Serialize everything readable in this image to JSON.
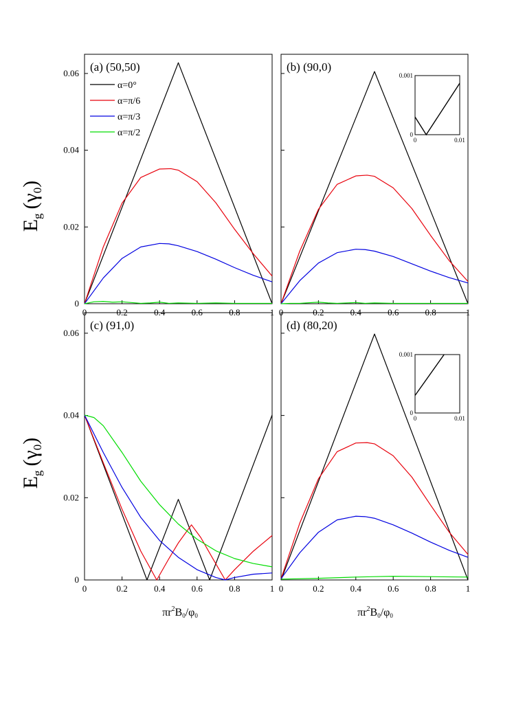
{
  "figure": {
    "ylabel": {
      "main": "E",
      "sub_g": "g",
      "paren": "(γ",
      "sub_0": "0",
      "close": ")"
    },
    "xlabel": {
      "p1": "πr",
      "sup": "2",
      "p2": "B",
      "sub1": "0",
      "p3": "/φ",
      "sub2": "0"
    }
  },
  "legend": {
    "entries": [
      {
        "label": "α=0°",
        "color": "#000000"
      },
      {
        "label": "α=π/6",
        "color": "#e8000b"
      },
      {
        "label": "α=π/3",
        "color": "#0000e0"
      },
      {
        "label": "α=π/2",
        "color": "#00dd00"
      }
    ],
    "placement": "top-left of panel (a)"
  },
  "chart_data": [
    {
      "type": "line",
      "label": "(a) (50,50)",
      "xlim": [
        0,
        1
      ],
      "ylim": [
        0,
        0.065
      ],
      "xticks": [
        "0",
        "0.2",
        "0.4",
        "0.6",
        "0.8",
        "1"
      ],
      "yticks": [
        "0",
        "0.02",
        "0.04",
        "0.06"
      ],
      "series": [
        {
          "name": "α=0°",
          "color": "#000000",
          "points": [
            [
              0,
              0
            ],
            [
              0.5,
              0.0628
            ],
            [
              1,
              0
            ]
          ]
        },
        {
          "name": "α=π/6",
          "color": "#e8000b",
          "points": [
            [
              0,
              0
            ],
            [
              0.1,
              0.0148
            ],
            [
              0.2,
              0.0262
            ],
            [
              0.3,
              0.0329
            ],
            [
              0.4,
              0.0351
            ],
            [
              0.46,
              0.0352
            ],
            [
              0.5,
              0.0348
            ],
            [
              0.6,
              0.0318
            ],
            [
              0.7,
              0.0263
            ],
            [
              0.8,
              0.0194
            ],
            [
              0.9,
              0.013
            ],
            [
              1,
              0.0072
            ]
          ]
        },
        {
          "name": "α=π/3",
          "color": "#0000e0",
          "points": [
            [
              0,
              0
            ],
            [
              0.1,
              0.0067
            ],
            [
              0.2,
              0.0118
            ],
            [
              0.3,
              0.0148
            ],
            [
              0.4,
              0.0157
            ],
            [
              0.45,
              0.0156
            ],
            [
              0.5,
              0.0151
            ],
            [
              0.6,
              0.0136
            ],
            [
              0.7,
              0.0116
            ],
            [
              0.8,
              0.0094
            ],
            [
              0.9,
              0.0074
            ],
            [
              1,
              0.0057
            ]
          ]
        },
        {
          "name": "α=π/2",
          "color": "#00dd00",
          "points": [
            [
              0,
              0
            ],
            [
              0.05,
              0.0005
            ],
            [
              0.1,
              0.0006
            ],
            [
              0.15,
              0.0004
            ],
            [
              0.2,
              0.0005
            ],
            [
              0.25,
              0.0003
            ],
            [
              0.3,
              0.0001
            ],
            [
              0.35,
              0.0002
            ],
            [
              0.4,
              0.0004
            ],
            [
              0.45,
              0.0001
            ],
            [
              0.5,
              0.0002
            ],
            [
              0.6,
              0.0001
            ],
            [
              0.7,
              0.0002
            ],
            [
              0.8,
              0.0001
            ],
            [
              0.9,
              0.0001
            ],
            [
              1,
              0.0001
            ]
          ]
        }
      ]
    },
    {
      "type": "line",
      "label": "(b) (90,0)",
      "xlim": [
        0,
        1
      ],
      "ylim": [
        0,
        0.065
      ],
      "xticks": [
        "0",
        "0.2",
        "0.4",
        "0.6",
        "0.8",
        "1"
      ],
      "yticks": [],
      "series": [
        {
          "name": "α=0°",
          "color": "#000000",
          "points": [
            [
              0,
              0
            ],
            [
              0.5,
              0.0605
            ],
            [
              1,
              0
            ]
          ]
        },
        {
          "name": "α=π/6",
          "color": "#e8000b",
          "points": [
            [
              0,
              0
            ],
            [
              0.1,
              0.0137
            ],
            [
              0.2,
              0.0246
            ],
            [
              0.3,
              0.0311
            ],
            [
              0.4,
              0.0333
            ],
            [
              0.46,
              0.0335
            ],
            [
              0.5,
              0.0332
            ],
            [
              0.6,
              0.0302
            ],
            [
              0.7,
              0.0248
            ],
            [
              0.8,
              0.0178
            ],
            [
              0.9,
              0.0112
            ],
            [
              1,
              0.0058
            ]
          ]
        },
        {
          "name": "α=π/3",
          "color": "#0000e0",
          "points": [
            [
              0,
              0
            ],
            [
              0.1,
              0.006
            ],
            [
              0.2,
              0.0106
            ],
            [
              0.3,
              0.0133
            ],
            [
              0.4,
              0.0142
            ],
            [
              0.45,
              0.0141
            ],
            [
              0.5,
              0.0137
            ],
            [
              0.6,
              0.0123
            ],
            [
              0.7,
              0.0104
            ],
            [
              0.8,
              0.0085
            ],
            [
              0.9,
              0.0068
            ],
            [
              1,
              0.0054
            ]
          ]
        },
        {
          "name": "α=π/2",
          "color": "#00dd00",
          "points": [
            [
              0,
              0
            ],
            [
              0.05,
              0.0001
            ],
            [
              0.1,
              0.0001
            ],
            [
              0.2,
              0.0004
            ],
            [
              0.25,
              0.0002
            ],
            [
              0.3,
              0.0001
            ],
            [
              0.4,
              0.0003
            ],
            [
              0.45,
              0.0001
            ],
            [
              0.5,
              0.0002
            ],
            [
              0.6,
              0.0001
            ],
            [
              0.7,
              0.0001
            ],
            [
              0.8,
              0.0001
            ],
            [
              1,
              0.0001
            ]
          ]
        }
      ],
      "inset": {
        "xlim": [
          0,
          0.01
        ],
        "ylim": [
          0,
          0.001
        ],
        "xticks": [
          "0",
          "0.01"
        ],
        "yticks": [
          "0",
          "0.001"
        ],
        "points": [
          [
            0,
            0.0003
          ],
          [
            0.0025,
            0
          ],
          [
            0.01,
            0.00087
          ]
        ]
      }
    },
    {
      "type": "line",
      "label": "(c) (91,0)",
      "xlim": [
        0,
        1
      ],
      "ylim": [
        0,
        0.065
      ],
      "xticks": [
        "0",
        "0.2",
        "0.4",
        "0.6",
        "0.8",
        "1"
      ],
      "yticks": [
        "0",
        "0.02",
        "0.04",
        "0.06"
      ],
      "series": [
        {
          "name": "α=0°",
          "color": "#000000",
          "points": [
            [
              0,
              0.0401
            ],
            [
              0.333,
              0
            ],
            [
              0.5,
              0.0196
            ],
            [
              0.667,
              0
            ],
            [
              1,
              0.0401
            ]
          ]
        },
        {
          "name": "α=π/6",
          "color": "#e8000b",
          "points": [
            [
              0,
              0.0401
            ],
            [
              0.1,
              0.0285
            ],
            [
              0.2,
              0.0172
            ],
            [
              0.3,
              0.007
            ],
            [
              0.385,
              0
            ],
            [
              0.45,
              0.0052
            ],
            [
              0.5,
              0.009
            ],
            [
              0.57,
              0.0134
            ],
            [
              0.62,
              0.0103
            ],
            [
              0.68,
              0.0055
            ],
            [
              0.75,
              0
            ],
            [
              0.8,
              0.0025
            ],
            [
              0.9,
              0.007
            ],
            [
              1,
              0.0108
            ]
          ]
        },
        {
          "name": "α=π/3",
          "color": "#0000e0",
          "points": [
            [
              0,
              0.0401
            ],
            [
              0.1,
              0.031
            ],
            [
              0.2,
              0.0225
            ],
            [
              0.3,
              0.0152
            ],
            [
              0.4,
              0.0096
            ],
            [
              0.5,
              0.0055
            ],
            [
              0.6,
              0.0025
            ],
            [
              0.7,
              0.0006
            ],
            [
              0.75,
              0
            ],
            [
              0.8,
              0.0006
            ],
            [
              0.9,
              0.0014
            ],
            [
              1,
              0.0017
            ]
          ]
        },
        {
          "name": "α=π/2",
          "color": "#00dd00",
          "points": [
            [
              0,
              0.0401
            ],
            [
              0.05,
              0.0395
            ],
            [
              0.1,
              0.0375
            ],
            [
              0.2,
              0.031
            ],
            [
              0.3,
              0.024
            ],
            [
              0.4,
              0.0183
            ],
            [
              0.5,
              0.0136
            ],
            [
              0.6,
              0.0099
            ],
            [
              0.7,
              0.0071
            ],
            [
              0.8,
              0.0052
            ],
            [
              0.9,
              0.004
            ],
            [
              1,
              0.0032
            ]
          ]
        }
      ]
    },
    {
      "type": "line",
      "label": "(d) (80,20)",
      "xlim": [
        0,
        1
      ],
      "ylim": [
        0,
        0.065
      ],
      "xticks": [
        "0",
        "0.2",
        "0.4",
        "0.6",
        "0.8",
        "1"
      ],
      "yticks": [],
      "series": [
        {
          "name": "α=0°",
          "color": "#000000",
          "points": [
            [
              0,
              0
            ],
            [
              0.5,
              0.0598
            ],
            [
              1,
              0
            ]
          ]
        },
        {
          "name": "α=π/6",
          "color": "#e8000b",
          "points": [
            [
              0,
              0.0003
            ],
            [
              0.1,
              0.0138
            ],
            [
              0.2,
              0.0246
            ],
            [
              0.3,
              0.0312
            ],
            [
              0.4,
              0.0333
            ],
            [
              0.46,
              0.0334
            ],
            [
              0.5,
              0.0331
            ],
            [
              0.6,
              0.0302
            ],
            [
              0.7,
              0.025
            ],
            [
              0.8,
              0.0182
            ],
            [
              0.9,
              0.0116
            ],
            [
              1,
              0.0062
            ]
          ]
        },
        {
          "name": "α=π/3",
          "color": "#0000e0",
          "points": [
            [
              0,
              0.0003
            ],
            [
              0.1,
              0.0066
            ],
            [
              0.2,
              0.0116
            ],
            [
              0.3,
              0.0146
            ],
            [
              0.4,
              0.0155
            ],
            [
              0.45,
              0.0154
            ],
            [
              0.5,
              0.015
            ],
            [
              0.6,
              0.0134
            ],
            [
              0.7,
              0.0114
            ],
            [
              0.8,
              0.0092
            ],
            [
              0.9,
              0.0072
            ],
            [
              1,
              0.0055
            ]
          ]
        },
        {
          "name": "α=π/2",
          "color": "#00dd00",
          "points": [
            [
              0,
              0.0002
            ],
            [
              0.2,
              0.0004
            ],
            [
              0.4,
              0.0007
            ],
            [
              0.5,
              0.0008
            ],
            [
              0.6,
              0.0009
            ],
            [
              0.8,
              0.0008
            ],
            [
              1,
              0.0007
            ]
          ]
        }
      ],
      "inset": {
        "xlim": [
          0,
          0.01
        ],
        "ylim": [
          0,
          0.001
        ],
        "xticks": [
          "0",
          "0.01"
        ],
        "yticks": [
          "0",
          "0.001"
        ],
        "points": [
          [
            0,
            0.0003
          ],
          [
            0.0065,
            0.001
          ]
        ]
      }
    }
  ]
}
